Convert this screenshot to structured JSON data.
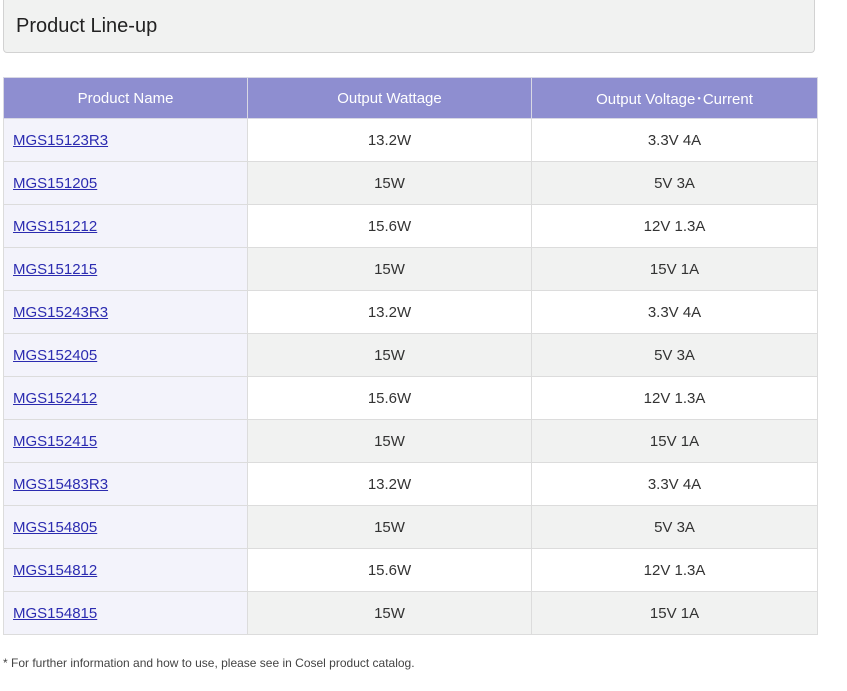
{
  "header": {
    "title": "Product Line-up"
  },
  "table": {
    "columns": [
      "Product Name",
      "Output Wattage",
      "Output Voltage･Current"
    ],
    "rows": [
      {
        "name": "MGS15123R3",
        "wattage": "13.2W",
        "voltage_current": "3.3V 4A"
      },
      {
        "name": "MGS151205",
        "wattage": "15W",
        "voltage_current": "5V 3A"
      },
      {
        "name": "MGS151212",
        "wattage": "15.6W",
        "voltage_current": "12V 1.3A"
      },
      {
        "name": "MGS151215",
        "wattage": "15W",
        "voltage_current": "15V 1A"
      },
      {
        "name": "MGS15243R3",
        "wattage": "13.2W",
        "voltage_current": "3.3V 4A"
      },
      {
        "name": "MGS152405",
        "wattage": "15W",
        "voltage_current": "5V 3A"
      },
      {
        "name": "MGS152412",
        "wattage": "15.6W",
        "voltage_current": "12V 1.3A"
      },
      {
        "name": "MGS152415",
        "wattage": "15W",
        "voltage_current": "15V 1A"
      },
      {
        "name": "MGS15483R3",
        "wattage": "13.2W",
        "voltage_current": "3.3V 4A"
      },
      {
        "name": "MGS154805",
        "wattage": "15W",
        "voltage_current": "5V 3A"
      },
      {
        "name": "MGS154812",
        "wattage": "15.6W",
        "voltage_current": "12V 1.3A"
      },
      {
        "name": "MGS154815",
        "wattage": "15W",
        "voltage_current": "15V 1A"
      }
    ]
  },
  "footnote": "* For further information and how to use, please see in Cosel product catalog.",
  "colors": {
    "header_bg": "#8e8ed0",
    "link": "#2b2bb0",
    "alt_row_bg": "#f1f2f1",
    "name_cell_bg": "#f3f3fb"
  }
}
